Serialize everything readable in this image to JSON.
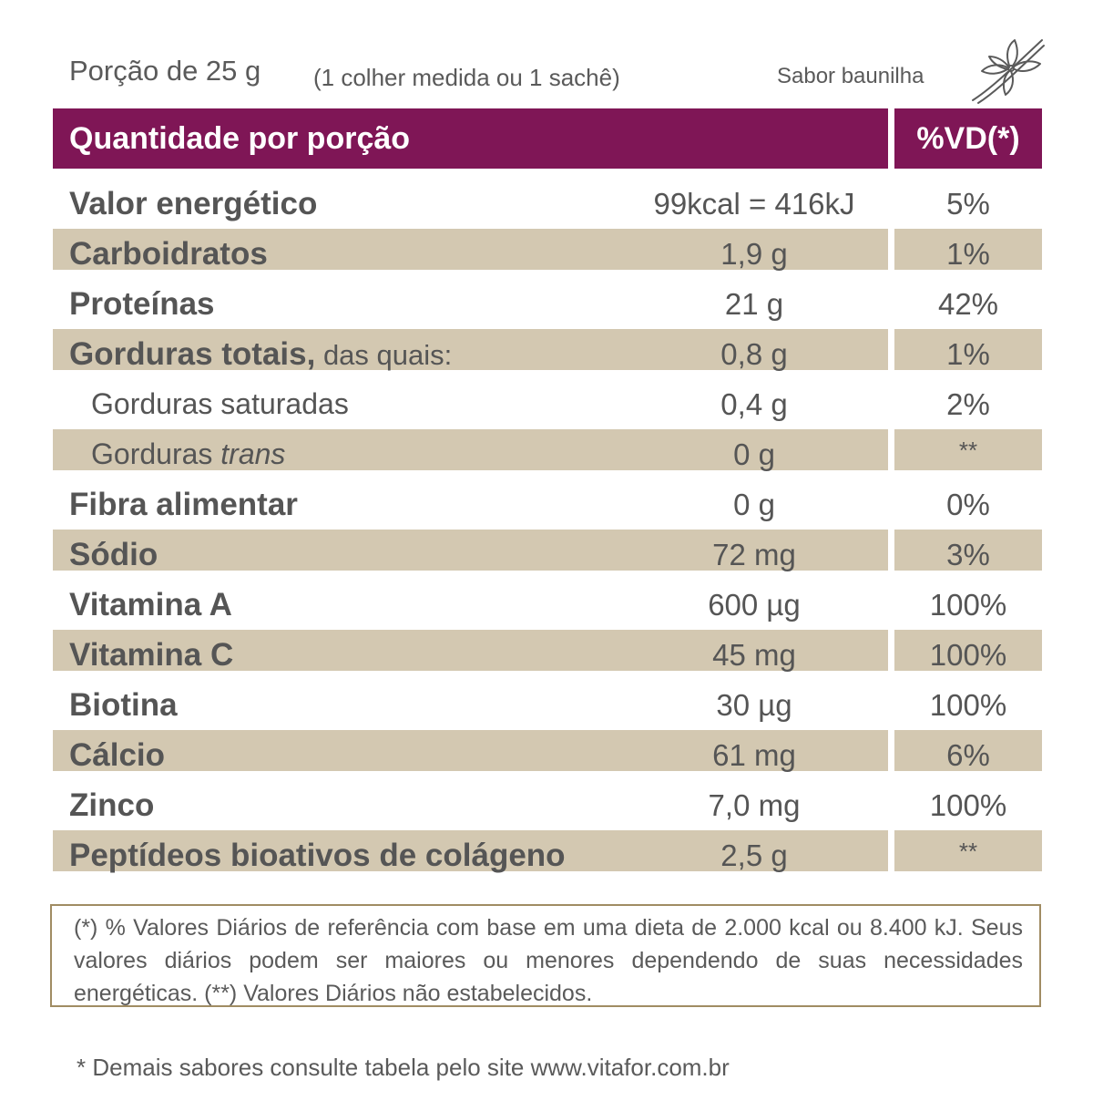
{
  "header": {
    "serving": "Porção de 25 g",
    "serving_note": "(1 colher medida ou 1 sachê)",
    "flavor": "Sabor baunilha",
    "flavor_icon": "vanilla-flower-icon"
  },
  "table": {
    "col_quantity": "Quantidade por porção",
    "col_vd": "%VD(*)",
    "rows": [
      {
        "label": "Valor energético",
        "amount": "99kcal = 416kJ",
        "vd": "5%"
      },
      {
        "label": "Carboidratos",
        "amount": "1,9 g",
        "vd": "1%"
      },
      {
        "label": "Proteínas",
        "amount": "21 g",
        "vd": "42%"
      },
      {
        "label": "Gorduras totais,",
        "label_extra": " das quais:",
        "amount": "0,8 g",
        "vd": "1%"
      },
      {
        "label": "Gorduras saturadas",
        "amount": "0,4 g",
        "vd": "2%"
      },
      {
        "label": "Gorduras ",
        "label_italic": "trans",
        "amount": "0 g",
        "vd": "**"
      },
      {
        "label": "Fibra alimentar",
        "amount": "0 g",
        "vd": "0%"
      },
      {
        "label": "Sódio",
        "amount": "72 mg",
        "vd": "3%"
      },
      {
        "label": "Vitamina A",
        "amount": "600 µg",
        "vd": "100%"
      },
      {
        "label": "Vitamina C",
        "amount": "45 mg",
        "vd": "100%"
      },
      {
        "label": "Biotina",
        "amount": "30 µg",
        "vd": "100%"
      },
      {
        "label": "Cálcio",
        "amount": "61 mg",
        "vd": "6%"
      },
      {
        "label": "Zinco",
        "amount": "7,0 mg",
        "vd": "100%"
      },
      {
        "label": "Peptídeos bioativos de colágeno",
        "amount": "2,5 g",
        "vd": "**"
      }
    ]
  },
  "footnote": "(*) % Valores Diários de referência com base em uma dieta de 2.000 kcal ou 8.400 kJ. Seus valores diários podem ser maiores ou menores dependendo de suas necessidades energéticas. (**) Valores Diários não estabelecidos.",
  "site_note": "* Demais sabores consulte tabela pelo site www.vitafor.com.br",
  "colors": {
    "header_bg": "#7f1656",
    "row_shade": "#d3c8b1",
    "text": "#555555",
    "border": "#a08c63"
  }
}
